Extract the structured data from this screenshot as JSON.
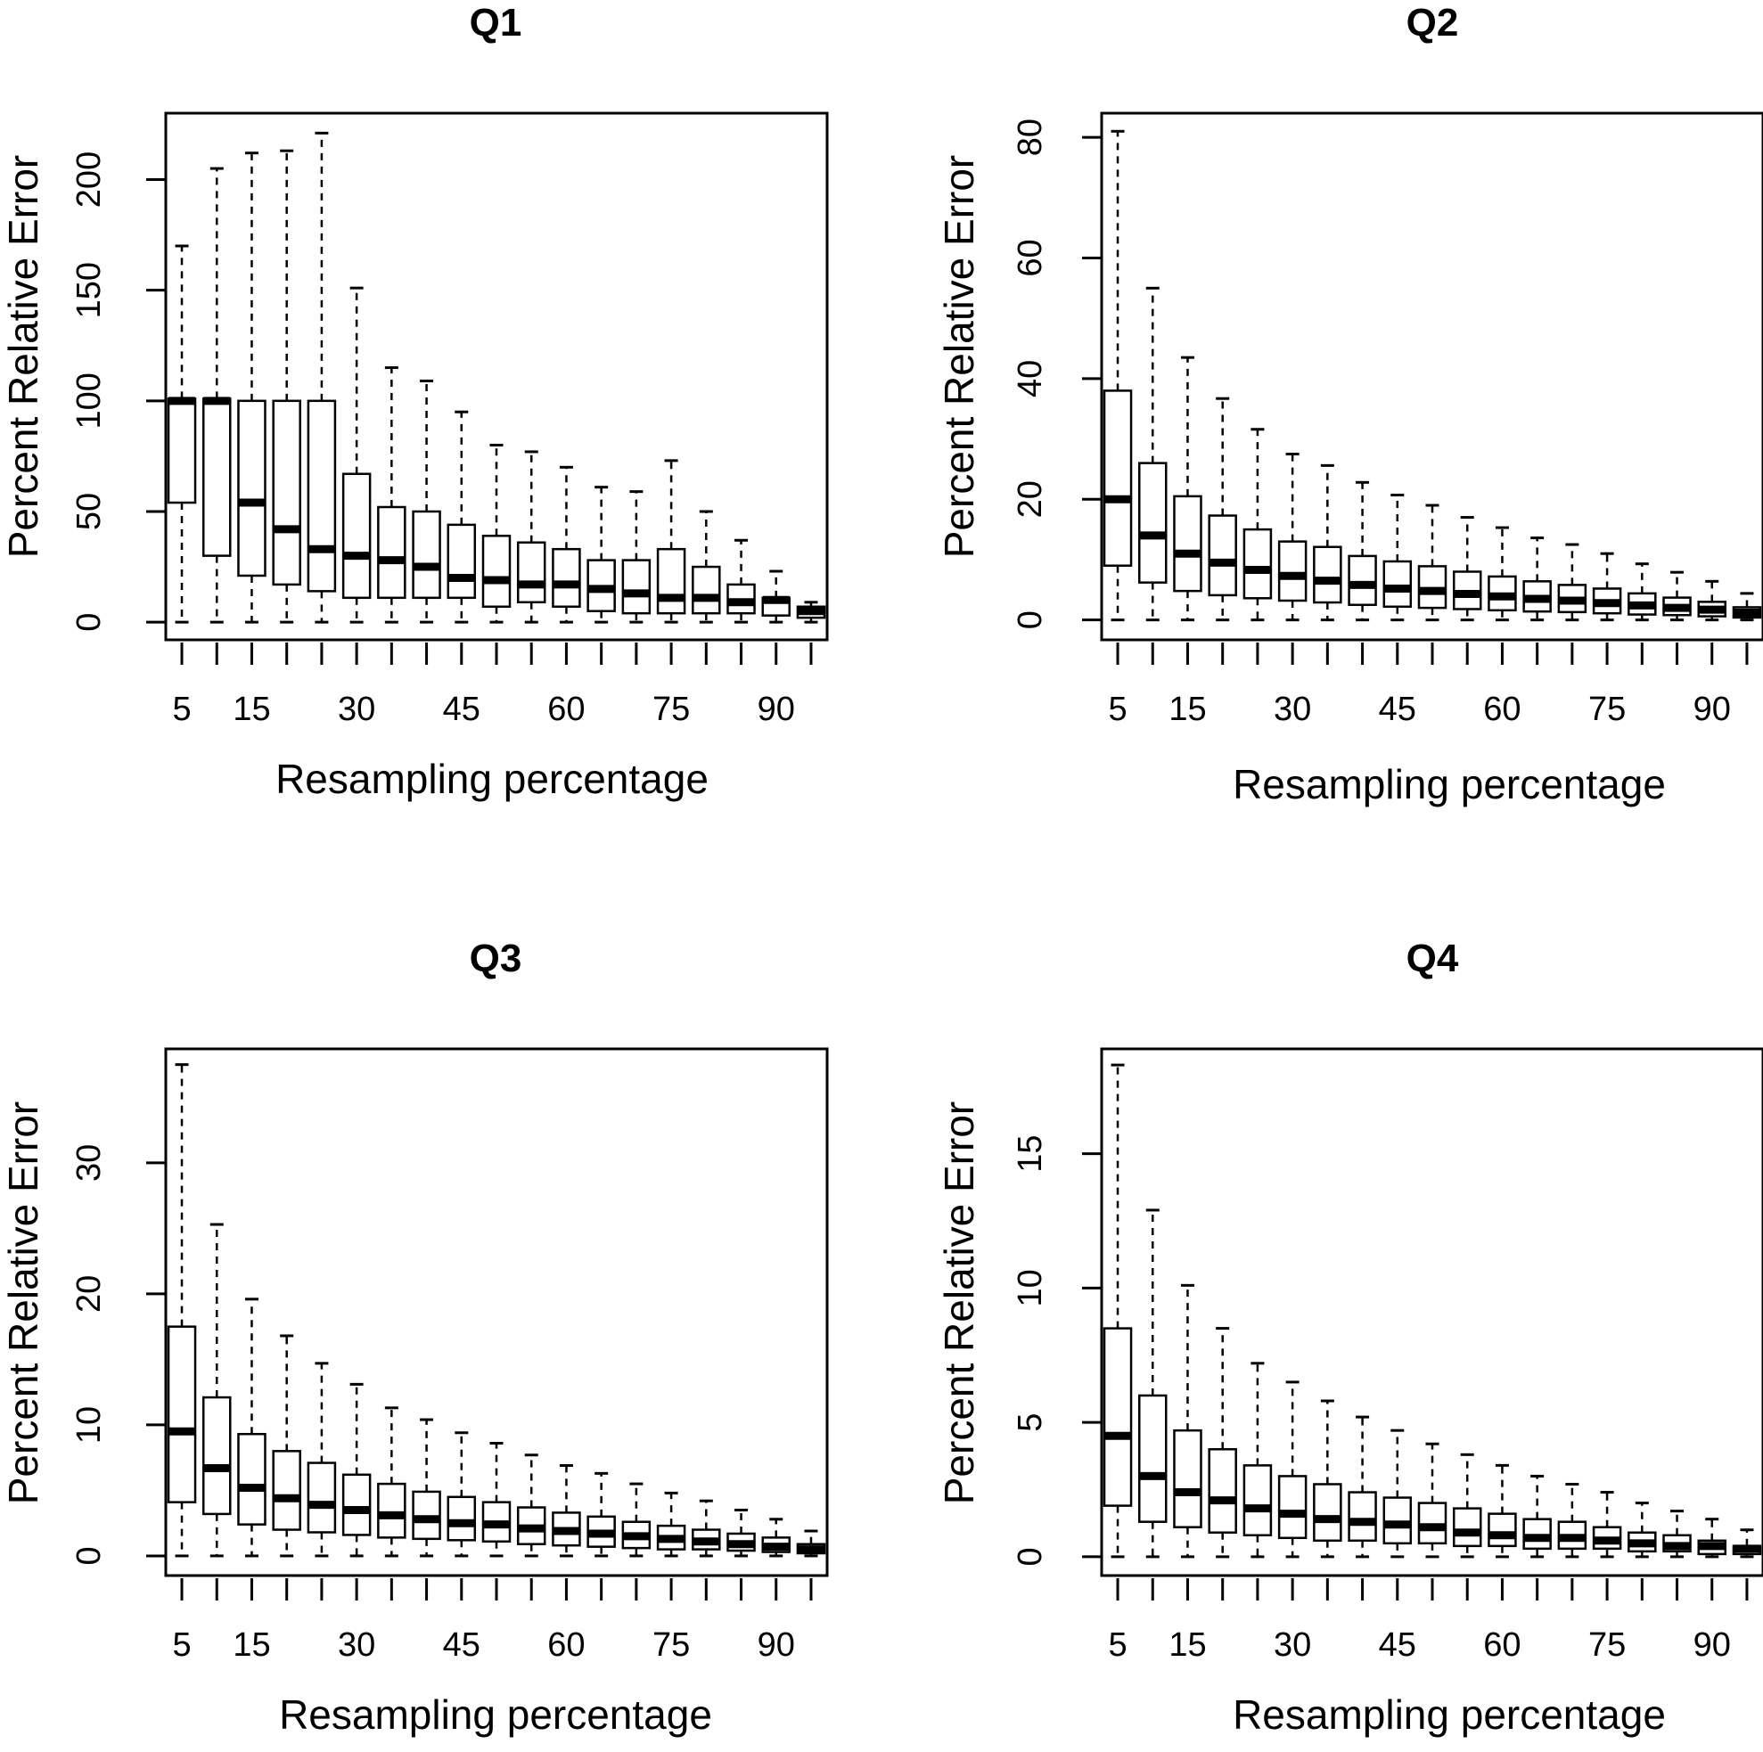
{
  "figure": {
    "layout": "2x2 grid",
    "accent_color": "#000000",
    "background": "#ffffff"
  },
  "chart_data": [
    {
      "type": "box",
      "title": "Q1",
      "xlabel": "Resampling percentage",
      "ylabel": "Percent Relative Error",
      "ylim": [
        -8,
        230
      ],
      "yticks": [
        "0",
        "50",
        "100",
        "150",
        "200"
      ],
      "ytick_values": [
        0,
        50,
        100,
        150,
        200
      ],
      "x": [
        5,
        10,
        15,
        20,
        25,
        30,
        35,
        40,
        45,
        50,
        55,
        60,
        65,
        70,
        75,
        80,
        85,
        90,
        95
      ],
      "xticks": [
        "5",
        "15",
        "30",
        "45",
        "60",
        "75",
        "90"
      ],
      "xtick_values": [
        5,
        15,
        30,
        45,
        60,
        75,
        90
      ],
      "boxes": [
        {
          "min": 0,
          "q1": 54,
          "median": 100,
          "q3": 101,
          "max": 170
        },
        {
          "min": 0,
          "q1": 30,
          "median": 100,
          "q3": 101,
          "max": 205
        },
        {
          "min": 0,
          "q1": 21,
          "median": 54,
          "q3": 100,
          "max": 212
        },
        {
          "min": 0,
          "q1": 17,
          "median": 42,
          "q3": 100,
          "max": 213
        },
        {
          "min": 0,
          "q1": 14,
          "median": 33,
          "q3": 100,
          "max": 221
        },
        {
          "min": 0,
          "q1": 11,
          "median": 30,
          "q3": 67,
          "max": 151
        },
        {
          "min": 0,
          "q1": 11,
          "median": 28,
          "q3": 52,
          "max": 115
        },
        {
          "min": 0,
          "q1": 11,
          "median": 25,
          "q3": 50,
          "max": 109
        },
        {
          "min": 0,
          "q1": 11,
          "median": 20,
          "q3": 44,
          "max": 95
        },
        {
          "min": 0,
          "q1": 7,
          "median": 19,
          "q3": 39,
          "max": 80
        },
        {
          "min": 0,
          "q1": 9,
          "median": 17,
          "q3": 36,
          "max": 77
        },
        {
          "min": 0,
          "q1": 7,
          "median": 17,
          "q3": 33,
          "max": 70
        },
        {
          "min": 0,
          "q1": 5,
          "median": 15,
          "q3": 28,
          "max": 61
        },
        {
          "min": 0,
          "q1": 4,
          "median": 13,
          "q3": 28,
          "max": 59
        },
        {
          "min": 0,
          "q1": 4,
          "median": 11,
          "q3": 33,
          "max": 73
        },
        {
          "min": 0,
          "q1": 4,
          "median": 11,
          "q3": 25,
          "max": 50
        },
        {
          "min": 0,
          "q1": 4,
          "median": 9,
          "q3": 17,
          "max": 37
        },
        {
          "min": 0,
          "q1": 3,
          "median": 10,
          "q3": 11,
          "max": 23
        },
        {
          "min": 0,
          "q1": 2,
          "median": 5,
          "q3": 7,
          "max": 9
        }
      ]
    },
    {
      "type": "box",
      "title": "Q2",
      "xlabel": "Resampling percentage",
      "ylabel": "Percent Relative Error",
      "ylim": [
        -3.3,
        84
      ],
      "yticks": [
        "0",
        "20",
        "40",
        "60",
        "80"
      ],
      "ytick_values": [
        0,
        20,
        40,
        60,
        80
      ],
      "x": [
        5,
        10,
        15,
        20,
        25,
        30,
        35,
        40,
        45,
        50,
        55,
        60,
        65,
        70,
        75,
        80,
        85,
        90,
        95
      ],
      "xticks": [
        "5",
        "15",
        "30",
        "45",
        "60",
        "75",
        "90"
      ],
      "xtick_values": [
        5,
        15,
        30,
        45,
        60,
        75,
        90
      ],
      "boxes": [
        {
          "min": 0,
          "q1": 9,
          "median": 20,
          "q3": 38,
          "max": 81
        },
        {
          "min": 0,
          "q1": 6.2,
          "median": 14,
          "q3": 26,
          "max": 55
        },
        {
          "min": 0,
          "q1": 4.8,
          "median": 11,
          "q3": 20.5,
          "max": 43.5
        },
        {
          "min": 0,
          "q1": 4.1,
          "median": 9.5,
          "q3": 17.3,
          "max": 36.7
        },
        {
          "min": 0,
          "q1": 3.6,
          "median": 8.3,
          "q3": 15,
          "max": 31.6
        },
        {
          "min": 0,
          "q1": 3.2,
          "median": 7.3,
          "q3": 13,
          "max": 27.5
        },
        {
          "min": 0,
          "q1": 2.9,
          "median": 6.5,
          "q3": 12.1,
          "max": 25.6
        },
        {
          "min": 0,
          "q1": 2.5,
          "median": 5.8,
          "q3": 10.6,
          "max": 22.8
        },
        {
          "min": 0,
          "q1": 2.2,
          "median": 5.2,
          "q3": 9.7,
          "max": 20.7
        },
        {
          "min": 0,
          "q1": 2,
          "median": 4.8,
          "q3": 8.9,
          "max": 19
        },
        {
          "min": 0,
          "q1": 1.8,
          "median": 4.3,
          "q3": 8,
          "max": 17
        },
        {
          "min": 0,
          "q1": 1.6,
          "median": 3.9,
          "q3": 7.2,
          "max": 15.3
        },
        {
          "min": 0,
          "q1": 1.4,
          "median": 3.5,
          "q3": 6.4,
          "max": 13.6
        },
        {
          "min": 0,
          "q1": 1.3,
          "median": 3.2,
          "q3": 5.8,
          "max": 12.5
        },
        {
          "min": 0,
          "q1": 1.1,
          "median": 2.8,
          "q3": 5.2,
          "max": 11
        },
        {
          "min": 0,
          "q1": 0.9,
          "median": 2.4,
          "q3": 4.4,
          "max": 9.3
        },
        {
          "min": 0,
          "q1": 0.8,
          "median": 2,
          "q3": 3.7,
          "max": 7.9
        },
        {
          "min": 0,
          "q1": 0.6,
          "median": 1.7,
          "q3": 3,
          "max": 6.4
        },
        {
          "min": 0,
          "q1": 0.4,
          "median": 1.2,
          "q3": 2.1,
          "max": 4.4
        }
      ]
    },
    {
      "type": "box",
      "title": "Q3",
      "xlabel": "Resampling percentage",
      "ylabel": "Percent Relative Error",
      "ylim": [
        -1.5,
        38.7
      ],
      "yticks": [
        "0",
        "10",
        "20",
        "30"
      ],
      "ytick_values": [
        0,
        10,
        20,
        30
      ],
      "x": [
        5,
        10,
        15,
        20,
        25,
        30,
        35,
        40,
        45,
        50,
        55,
        60,
        65,
        70,
        75,
        80,
        85,
        90,
        95
      ],
      "xticks": [
        "5",
        "15",
        "30",
        "45",
        "60",
        "75",
        "90"
      ],
      "xtick_values": [
        5,
        15,
        30,
        45,
        60,
        75,
        90
      ],
      "boxes": [
        {
          "min": 0,
          "q1": 4.1,
          "median": 9.5,
          "q3": 17.5,
          "max": 37.5
        },
        {
          "min": 0,
          "q1": 3.2,
          "median": 6.7,
          "q3": 12.1,
          "max": 25.3
        },
        {
          "min": 0,
          "q1": 2.4,
          "median": 5.2,
          "q3": 9.3,
          "max": 19.6
        },
        {
          "min": 0,
          "q1": 2,
          "median": 4.4,
          "q3": 8,
          "max": 16.8
        },
        {
          "min": 0,
          "q1": 1.8,
          "median": 3.9,
          "q3": 7.1,
          "max": 14.7
        },
        {
          "min": 0,
          "q1": 1.6,
          "median": 3.5,
          "q3": 6.2,
          "max": 13.1
        },
        {
          "min": 0,
          "q1": 1.4,
          "median": 3.1,
          "q3": 5.5,
          "max": 11.3
        },
        {
          "min": 0,
          "q1": 1.3,
          "median": 2.8,
          "q3": 4.9,
          "max": 10.4
        },
        {
          "min": 0,
          "q1": 1.2,
          "median": 2.5,
          "q3": 4.5,
          "max": 9.4
        },
        {
          "min": 0,
          "q1": 1.1,
          "median": 2.4,
          "q3": 4.1,
          "max": 8.6
        },
        {
          "min": 0,
          "q1": 0.9,
          "median": 2.1,
          "q3": 3.7,
          "max": 7.7
        },
        {
          "min": 0,
          "q1": 0.8,
          "median": 1.9,
          "q3": 3.3,
          "max": 6.9
        },
        {
          "min": 0,
          "q1": 0.7,
          "median": 1.7,
          "q3": 3,
          "max": 6.3
        },
        {
          "min": 0,
          "q1": 0.6,
          "median": 1.5,
          "q3": 2.6,
          "max": 5.5
        },
        {
          "min": 0,
          "q1": 0.5,
          "median": 1.3,
          "q3": 2.3,
          "max": 4.8
        },
        {
          "min": 0,
          "q1": 0.5,
          "median": 1.1,
          "q3": 2,
          "max": 4.2
        },
        {
          "min": 0,
          "q1": 0.4,
          "median": 0.9,
          "q3": 1.7,
          "max": 3.5
        },
        {
          "min": 0,
          "q1": 0.3,
          "median": 0.7,
          "q3": 1.4,
          "max": 2.8
        },
        {
          "min": 0,
          "q1": 0.2,
          "median": 0.5,
          "q3": 0.9,
          "max": 1.9
        }
      ]
    },
    {
      "type": "box",
      "title": "Q4",
      "xlabel": "Resampling percentage",
      "ylabel": "Percent Relative Error",
      "ylim": [
        -0.7,
        18.9
      ],
      "yticks": [
        "0",
        "5",
        "10",
        "15"
      ],
      "ytick_values": [
        0,
        5,
        10,
        15
      ],
      "x": [
        5,
        10,
        15,
        20,
        25,
        30,
        35,
        40,
        45,
        50,
        55,
        60,
        65,
        70,
        75,
        80,
        85,
        90,
        95
      ],
      "xticks": [
        "5",
        "15",
        "30",
        "45",
        "60",
        "75",
        "90"
      ],
      "xtick_values": [
        5,
        15,
        30,
        45,
        60,
        75,
        90
      ],
      "boxes": [
        {
          "min": 0,
          "q1": 1.9,
          "median": 4.5,
          "q3": 8.5,
          "max": 18.3
        },
        {
          "min": 0,
          "q1": 1.3,
          "median": 3,
          "q3": 6,
          "max": 12.9
        },
        {
          "min": 0,
          "q1": 1.1,
          "median": 2.4,
          "q3": 4.7,
          "max": 10.1
        },
        {
          "min": 0,
          "q1": 0.9,
          "median": 2.1,
          "q3": 4,
          "max": 8.5
        },
        {
          "min": 0,
          "q1": 0.8,
          "median": 1.8,
          "q3": 3.4,
          "max": 7.2
        },
        {
          "min": 0,
          "q1": 0.7,
          "median": 1.6,
          "q3": 3,
          "max": 6.5
        },
        {
          "min": 0,
          "q1": 0.6,
          "median": 1.4,
          "q3": 2.7,
          "max": 5.8
        },
        {
          "min": 0,
          "q1": 0.6,
          "median": 1.3,
          "q3": 2.4,
          "max": 5.2
        },
        {
          "min": 0,
          "q1": 0.5,
          "median": 1.2,
          "q3": 2.2,
          "max": 4.7
        },
        {
          "min": 0,
          "q1": 0.5,
          "median": 1.1,
          "q3": 2,
          "max": 4.2
        },
        {
          "min": 0,
          "q1": 0.4,
          "median": 0.9,
          "q3": 1.8,
          "max": 3.8
        },
        {
          "min": 0,
          "q1": 0.4,
          "median": 0.8,
          "q3": 1.6,
          "max": 3.4
        },
        {
          "min": 0,
          "q1": 0.3,
          "median": 0.7,
          "q3": 1.4,
          "max": 3
        },
        {
          "min": 0,
          "q1": 0.3,
          "median": 0.7,
          "q3": 1.3,
          "max": 2.7
        },
        {
          "min": 0,
          "q1": 0.3,
          "median": 0.6,
          "q3": 1.1,
          "max": 2.4
        },
        {
          "min": 0,
          "q1": 0.2,
          "median": 0.5,
          "q3": 0.9,
          "max": 2
        },
        {
          "min": 0,
          "q1": 0.2,
          "median": 0.4,
          "q3": 0.8,
          "max": 1.7
        },
        {
          "min": 0,
          "q1": 0.1,
          "median": 0.4,
          "q3": 0.6,
          "max": 1.4
        },
        {
          "min": 0,
          "q1": 0.1,
          "median": 0.3,
          "q3": 0.4,
          "max": 1
        }
      ]
    }
  ]
}
